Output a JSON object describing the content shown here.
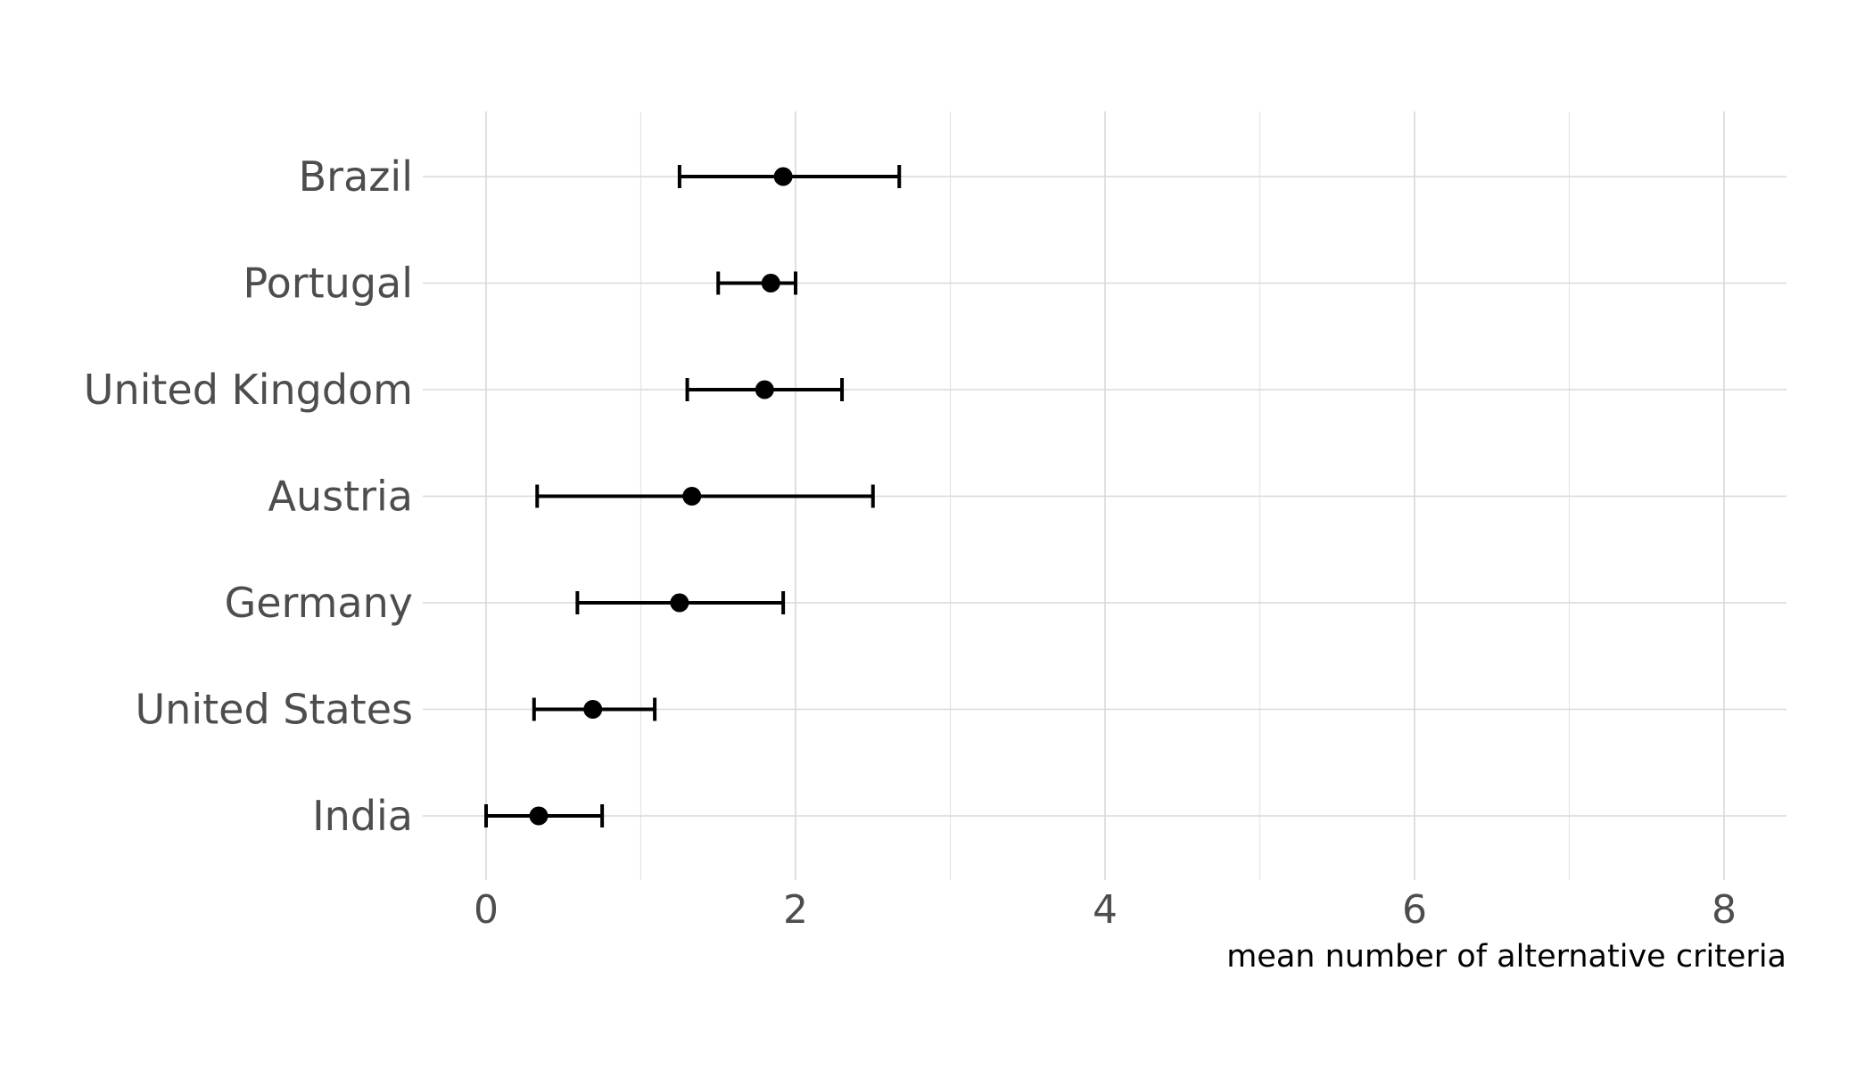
{
  "chart_data": {
    "type": "scatter",
    "orientation": "horizontal-dot-with-error-bars",
    "title": "",
    "xlabel": "mean number of alternative criteria",
    "ylabel": "",
    "xlim": [
      -0.35,
      8.4
    ],
    "x_ticks": [
      0,
      2,
      4,
      6,
      8
    ],
    "x_minor_ticks": [
      1,
      3,
      5,
      7
    ],
    "grid": true,
    "legend": "none",
    "categories": [
      "Brazil",
      "Portugal",
      "United Kingdom",
      "Austria",
      "Germany",
      "United States",
      "India"
    ],
    "series": [
      {
        "values": [
          {
            "category": "Brazil",
            "mean": 1.92,
            "low": 1.25,
            "high": 2.67
          },
          {
            "category": "Portugal",
            "mean": 1.84,
            "low": 1.5,
            "high": 2.0
          },
          {
            "category": "United Kingdom",
            "mean": 1.8,
            "low": 1.3,
            "high": 2.3
          },
          {
            "category": "Austria",
            "mean": 1.33,
            "low": 0.33,
            "high": 2.5
          },
          {
            "category": "Germany",
            "mean": 1.25,
            "low": 0.59,
            "high": 1.92
          },
          {
            "category": "United States",
            "mean": 0.69,
            "low": 0.31,
            "high": 1.09
          },
          {
            "category": "India",
            "mean": 0.34,
            "low": 0.0,
            "high": 0.75
          }
        ]
      }
    ],
    "colors": {
      "points": "#000000",
      "error_bars": "#000000",
      "grid": "#d9d9d9",
      "labels": "#4d4d4d"
    }
  }
}
